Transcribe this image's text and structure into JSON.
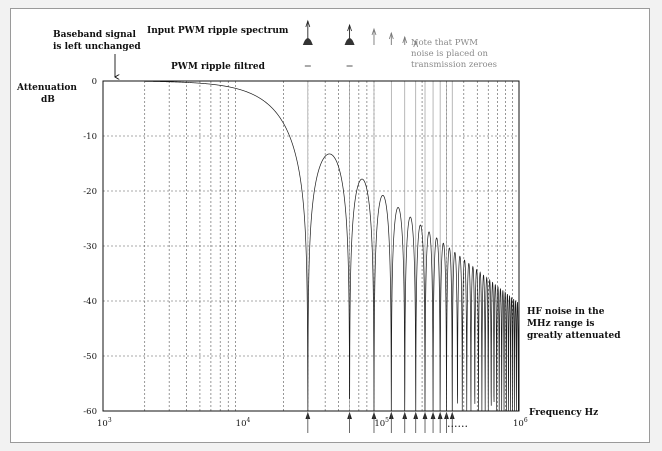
{
  "chart_data": {
    "type": "line",
    "title": "",
    "xlabel": "Frequency Hz",
    "ylabel": "Attenuation dB",
    "ylabel_line1": "Attenuation",
    "ylabel_line2": "dB",
    "x_scale": "log",
    "xlim": [
      1000,
      1000000
    ],
    "ylim": [
      -60,
      0
    ],
    "x_ticks": [
      {
        "value": 1000,
        "base": "10",
        "exp": "3"
      },
      {
        "value": 10000,
        "base": "10",
        "exp": "4"
      },
      {
        "value": 100000,
        "base": "10",
        "exp": "5"
      },
      {
        "value": 1000000,
        "base": "10",
        "exp": "6"
      }
    ],
    "y_ticks": [
      {
        "value": 0,
        "label": "0"
      },
      {
        "value": -10,
        "label": "-10"
      },
      {
        "value": -20,
        "label": "-20"
      },
      {
        "value": -30,
        "label": "-30"
      },
      {
        "value": -40,
        "label": "-40"
      },
      {
        "value": -50,
        "label": "-50"
      },
      {
        "value": -60,
        "label": "-60"
      }
    ],
    "grid": true,
    "series": [
      {
        "type": "sinc-response",
        "first_null_hz": 30000,
        "null_spacing_hz": 30000,
        "x": [
          2000,
          4000,
          6000,
          8000,
          10000,
          12000,
          15000,
          18000,
          20000,
          22000,
          24000,
          26000,
          28000,
          30000,
          45000,
          75000,
          105000,
          135000,
          195000,
          285000,
          435000,
          735000,
          1000000
        ],
        "y": [
          0,
          -0.2,
          -0.5,
          -0.9,
          -1.4,
          -2.1,
          -3.4,
          -5.2,
          -6.7,
          -8.7,
          -11.3,
          -15.1,
          -21.8,
          -60,
          -13.5,
          -17.9,
          -20.8,
          -23.0,
          -26.2,
          -29.5,
          -33.2,
          -37.7,
          -41.0
        ]
      }
    ],
    "pwm_input_spectrum_hz": [
      30000,
      60000,
      90000,
      120000,
      150000,
      180000
    ],
    "pwm_filtered_hz": [
      30000,
      60000
    ],
    "bottom_marker_hz": [
      30000,
      60000,
      90000,
      120000,
      150000,
      180000,
      210000,
      240000,
      270000,
      300000,
      330000
    ],
    "bottom_dots": "......",
    "annotations": [
      {
        "id": "baseband",
        "lines": [
          "Baseband signal",
          "is left unchanged"
        ]
      },
      {
        "id": "input-spectrum",
        "lines": [
          "Input PWM ripple spectrum"
        ]
      },
      {
        "id": "ripple-filtered",
        "lines": [
          "PWM ripple filtred"
        ]
      },
      {
        "id": "note-zeroes",
        "lines": [
          "Note that PWM",
          "noise is placed on",
          "transmission zeroes"
        ]
      },
      {
        "id": "hf-noise",
        "lines": [
          "HF noise in the",
          "MHz range is",
          "greatly attenuated"
        ]
      }
    ]
  },
  "colors": {
    "curve": "#1a1a1a",
    "grid": "#555555",
    "note": "#8a8a8a"
  }
}
